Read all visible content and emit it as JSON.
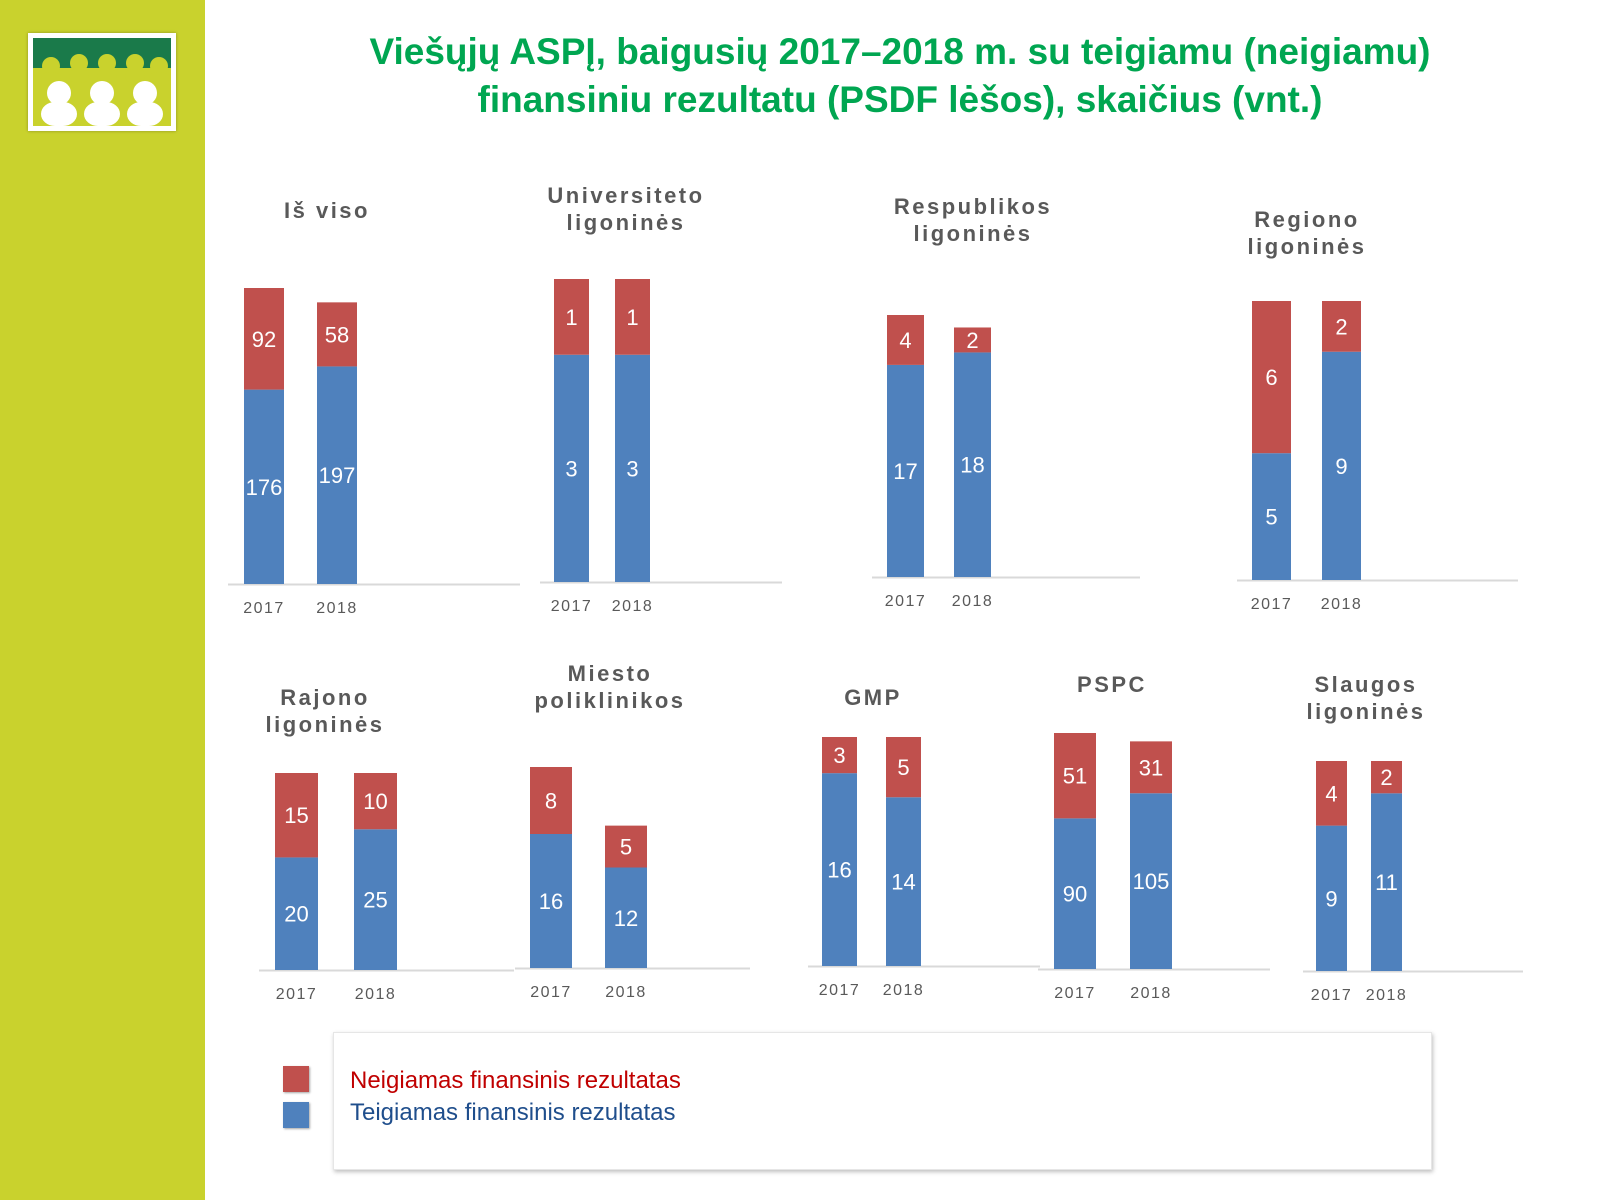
{
  "title_line1": "Viešųjų ASPĮ, baigusių 2017–2018 m. su teigiamu (neigiamu)",
  "title_line2": "finansiniu rezultatu (PSDF lėšos), skaičius (vnt.)",
  "colors": {
    "negative": "#c0504d",
    "positive": "#4f81bd",
    "sidebar": "#c9d22d",
    "title": "#00a651"
  },
  "legend": {
    "negative_label": "Neigiamas finansinis rezultatas",
    "positive_label": "Teigiamas finansinis rezultatas"
  },
  "chart_data": [
    {
      "type": "bar",
      "stacked": true,
      "title": "Iš viso",
      "categories": [
        "2017",
        "2018"
      ],
      "series": [
        {
          "name": "Teigiamas finansinis rezultatas",
          "values": [
            176,
            197
          ]
        },
        {
          "name": "Neigiamas finansinis rezultatas",
          "values": [
            92,
            58
          ]
        }
      ]
    },
    {
      "type": "bar",
      "stacked": true,
      "title": "Universiteto ligoninės",
      "categories": [
        "2017",
        "2018"
      ],
      "series": [
        {
          "name": "Teigiamas finansinis rezultatas",
          "values": [
            3,
            3
          ]
        },
        {
          "name": "Neigiamas finansinis rezultatas",
          "values": [
            1,
            1
          ]
        }
      ]
    },
    {
      "type": "bar",
      "stacked": true,
      "title": "Respublikos ligoninės",
      "categories": [
        "2017",
        "2018"
      ],
      "series": [
        {
          "name": "Teigiamas finansinis rezultatas",
          "values": [
            17,
            18
          ]
        },
        {
          "name": "Neigiamas finansinis rezultatas",
          "values": [
            4,
            2
          ]
        }
      ]
    },
    {
      "type": "bar",
      "stacked": true,
      "title": "Regiono ligoninės",
      "categories": [
        "2017",
        "2018"
      ],
      "series": [
        {
          "name": "Teigiamas finansinis rezultatas",
          "values": [
            5,
            9
          ]
        },
        {
          "name": "Neigiamas finansinis rezultatas",
          "values": [
            6,
            2
          ]
        }
      ]
    },
    {
      "type": "bar",
      "stacked": true,
      "title": "Rajono ligoninės",
      "categories": [
        "2017",
        "2018"
      ],
      "series": [
        {
          "name": "Teigiamas finansinis rezultatas",
          "values": [
            20,
            25
          ]
        },
        {
          "name": "Neigiamas finansinis rezultatas",
          "values": [
            15,
            10
          ]
        }
      ]
    },
    {
      "type": "bar",
      "stacked": true,
      "title": "Miesto poliklinikos",
      "categories": [
        "2017",
        "2018"
      ],
      "series": [
        {
          "name": "Teigiamas finansinis rezultatas",
          "values": [
            16,
            12
          ]
        },
        {
          "name": "Neigiamas finansinis rezultatas",
          "values": [
            8,
            5
          ]
        }
      ]
    },
    {
      "type": "bar",
      "stacked": true,
      "title": "GMP",
      "categories": [
        "2017",
        "2018"
      ],
      "series": [
        {
          "name": "Teigiamas finansinis rezultatas",
          "values": [
            16,
            14
          ]
        },
        {
          "name": "Neigiamas finansinis rezultatas",
          "values": [
            3,
            5
          ]
        }
      ]
    },
    {
      "type": "bar",
      "stacked": true,
      "title": "PSPC",
      "categories": [
        "2017",
        "2018"
      ],
      "series": [
        {
          "name": "Teigiamas finansinis rezultatas",
          "values": [
            90,
            105
          ]
        },
        {
          "name": "Neigiamas finansinis rezultatas",
          "values": [
            51,
            31
          ]
        }
      ]
    },
    {
      "type": "bar",
      "stacked": true,
      "title": "Slaugos ligoninės",
      "categories": [
        "2017",
        "2018"
      ],
      "series": [
        {
          "name": "Teigiamas finansinis rezultatas",
          "values": [
            9,
            11
          ]
        },
        {
          "name": "Neigiamas finansinis rezultatas",
          "values": [
            4,
            2
          ]
        }
      ]
    }
  ]
}
